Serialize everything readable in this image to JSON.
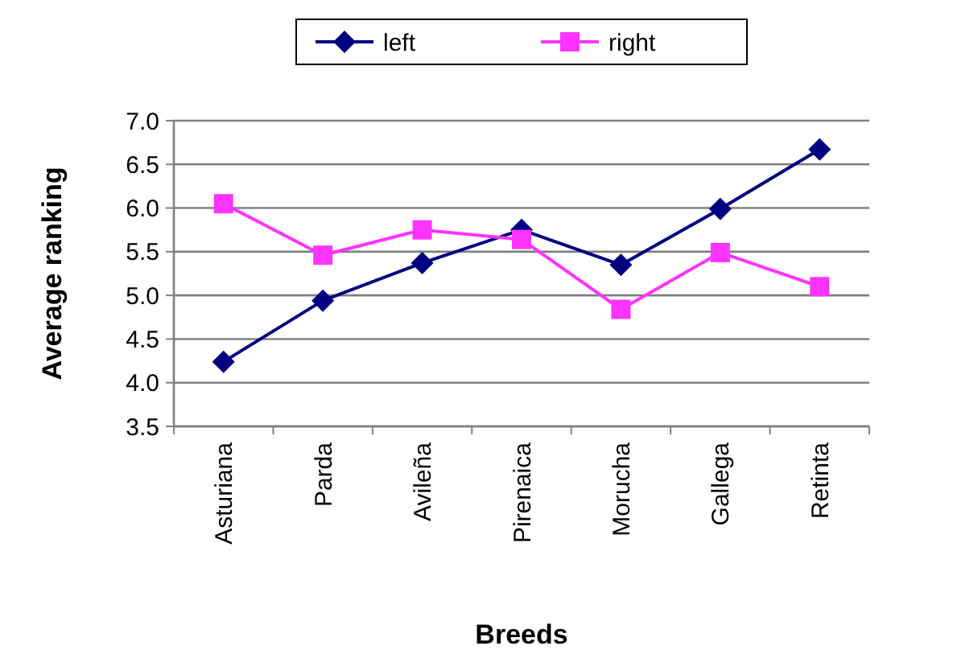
{
  "chart_data": {
    "type": "line",
    "xlabel": "Breeds",
    "ylabel": "Average ranking",
    "categories": [
      "Asturiana",
      "Parda",
      "Avileña",
      "Pirenaica",
      "Morucha",
      "Gallega",
      "Retinta"
    ],
    "series": [
      {
        "name": "left",
        "color": "#000080",
        "marker": "diamond",
        "values": [
          4.24,
          4.94,
          5.37,
          5.75,
          5.35,
          5.99,
          6.67
        ]
      },
      {
        "name": "right",
        "color": "#ff33ff",
        "marker": "square",
        "values": [
          6.05,
          5.46,
          5.75,
          5.64,
          4.84,
          5.49,
          5.1
        ]
      }
    ],
    "ylim": [
      3.5,
      7.0
    ],
    "yticks": [
      {
        "value": 3.5,
        "label": "3.5"
      },
      {
        "value": 4,
        "label": "4.0"
      },
      {
        "value": 4.5,
        "label": "4.5"
      },
      {
        "value": 5,
        "label": "5.0"
      },
      {
        "value": 5.5,
        "label": "5.5"
      },
      {
        "value": 6,
        "label": "6.0"
      },
      {
        "value": 6.5,
        "label": "6.5"
      },
      {
        "value": 7,
        "label": "7.0"
      }
    ],
    "grid": "y",
    "legend": "top"
  }
}
